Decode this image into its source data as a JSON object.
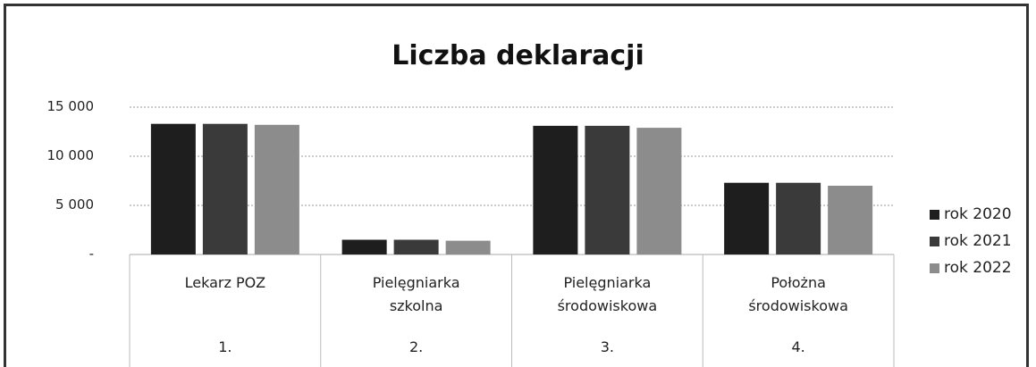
{
  "chart_data": {
    "type": "bar",
    "title": "Liczba deklaracji",
    "categories": [
      "Lekarz POZ",
      "Pielęgniarka szkolna",
      "Pielęgniarka środowiskowa",
      "Położna środowiskowa"
    ],
    "category_numbers": [
      "1.",
      "2.",
      "3.",
      "4."
    ],
    "series": [
      {
        "name": "rok 2020",
        "color": "#1e1e1e",
        "values": [
          13300,
          1500,
          13100,
          7300
        ]
      },
      {
        "name": "rok 2021",
        "color": "#3a3a3a",
        "values": [
          13300,
          1500,
          13100,
          7300
        ]
      },
      {
        "name": "rok 2022",
        "color": "#8c8c8c",
        "values": [
          13200,
          1400,
          12900,
          7000
        ]
      }
    ],
    "ylim": [
      0,
      15000
    ],
    "yticks": [
      {
        "value": 0,
        "label": "-"
      },
      {
        "value": 5000,
        "label": "5 000"
      },
      {
        "value": 10000,
        "label": "10 000"
      },
      {
        "value": 15000,
        "label": "15 000"
      }
    ],
    "grid": true,
    "legend": "right"
  }
}
